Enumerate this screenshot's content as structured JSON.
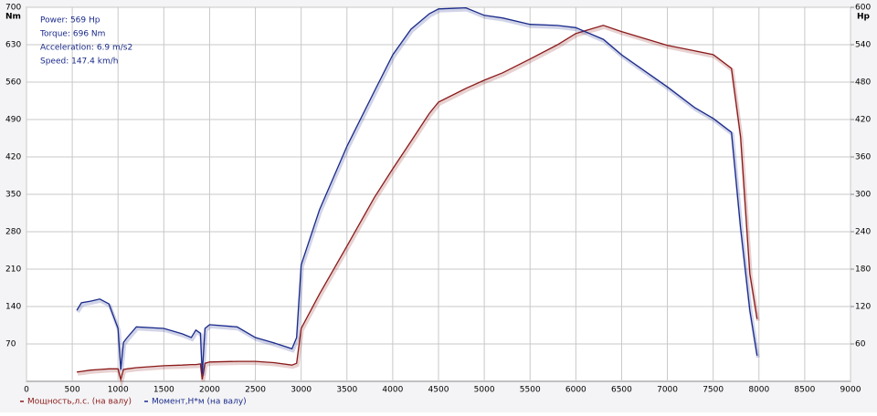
{
  "chart_data": {
    "type": "line",
    "y_label": "Nm",
    "y2_label": "Hp",
    "annotations": [
      "Power: 569 Hp",
      "Torque: 696 Nm",
      "Acceleration: 6.9 m/s2",
      "Speed: 147.4 km/h"
    ],
    "x": [
      550,
      600,
      700,
      800,
      900,
      1000,
      1030,
      1060,
      1100,
      1200,
      1500,
      1700,
      1800,
      1850,
      1900,
      1920,
      1950,
      2000,
      2300,
      2500,
      2700,
      2900,
      2950,
      3000,
      3200,
      3500,
      3800,
      4000,
      4200,
      4400,
      4500,
      4800,
      5000,
      5200,
      5500,
      5800,
      6000,
      6300,
      6500,
      7000,
      7300,
      7500,
      7700,
      7800,
      7900,
      7980
    ],
    "series": [
      {
        "name": "Мощность,л.с. (на валу)",
        "color": "#8b1a1a",
        "axis": "y2",
        "values": [
          15,
          16,
          18,
          19,
          20,
          20,
          3,
          19,
          20,
          22,
          25,
          26,
          27,
          27,
          28,
          3,
          29,
          31,
          32,
          32,
          30,
          26,
          29,
          85,
          140,
          217,
          295,
          341,
          385,
          430,
          448,
          470,
          483,
          495,
          517,
          540,
          558,
          571,
          561,
          539,
          530,
          524,
          502,
          392,
          173,
          100
        ]
      },
      {
        "name": "Момент,Н*м (на валу)",
        "color": "#1a2a8a",
        "values": [
          133,
          147,
          150,
          154,
          145,
          99,
          22,
          73,
          82,
          102,
          99,
          89,
          82,
          96,
          90,
          14,
          99,
          106,
          102,
          82,
          72,
          61,
          82,
          218,
          321,
          440,
          543,
          611,
          659,
          688,
          697,
          699,
          685,
          680,
          668,
          666,
          662,
          640,
          611,
          551,
          512,
          492,
          466,
          287,
          133,
          48
        ]
      }
    ],
    "xlim": [
      0,
      9000
    ],
    "xticks": [
      0,
      500,
      1000,
      1500,
      2000,
      2500,
      3000,
      3500,
      4000,
      4500,
      5000,
      5500,
      6000,
      6500,
      7000,
      7500,
      8000,
      8500,
      9000
    ],
    "ylim": [
      0,
      700
    ],
    "yticks": [
      70,
      140,
      210,
      280,
      350,
      420,
      490,
      560,
      630,
      700
    ],
    "y2lim": [
      0,
      600
    ],
    "y2ticks": [
      60,
      120,
      180,
      240,
      300,
      360,
      420,
      480,
      540,
      600
    ],
    "grid": true
  }
}
